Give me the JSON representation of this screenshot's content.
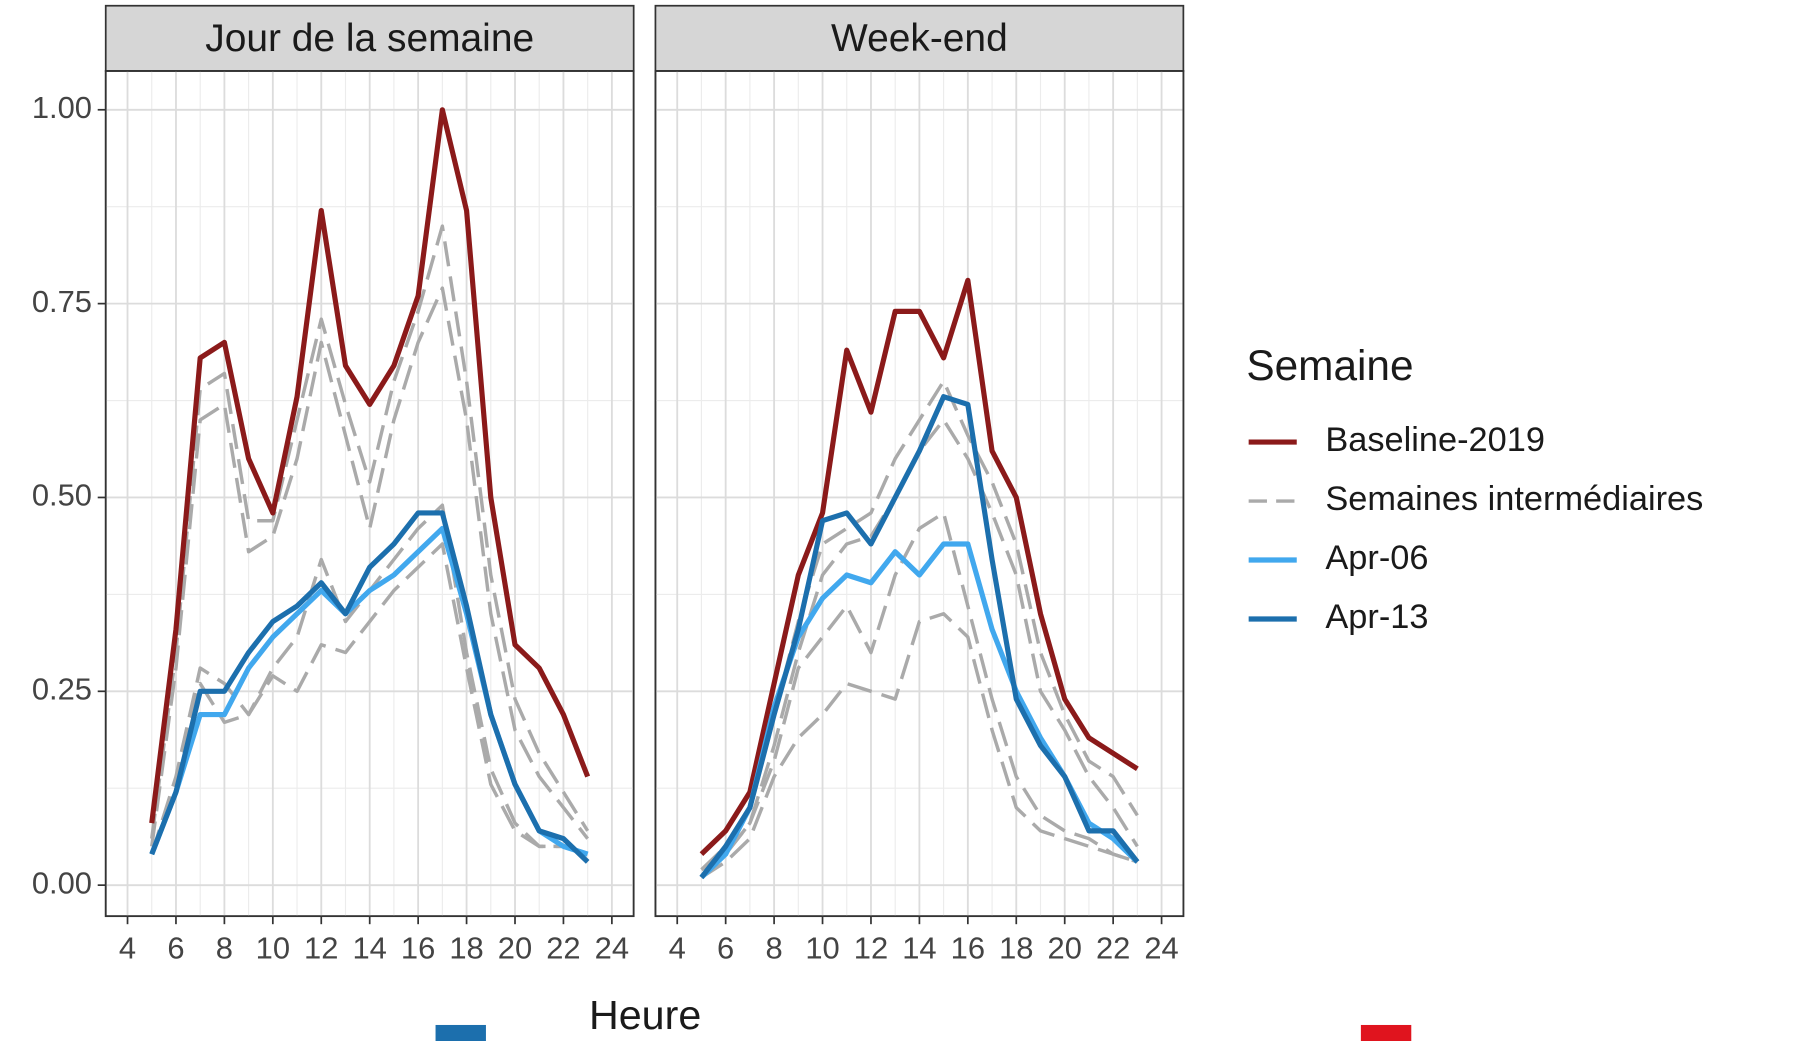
{
  "chart_data": [
    {
      "type": "line",
      "title": "Jour de la semaine",
      "x": [
        5,
        6,
        7,
        8,
        9,
        10,
        11,
        12,
        13,
        14,
        15,
        16,
        17,
        18,
        19,
        20,
        21,
        22,
        23
      ],
      "xlim": [
        3.1,
        24.9
      ],
      "xticks": [
        4,
        6,
        8,
        10,
        12,
        14,
        16,
        18,
        20,
        22,
        24
      ],
      "ylim": [
        -0.04,
        1.05
      ],
      "yticks": [
        {
          "value": 0,
          "label": "0.00"
        },
        {
          "value": 0.25,
          "label": "0.25"
        },
        {
          "value": 0.5,
          "label": "0.50"
        },
        {
          "value": 0.75,
          "label": "0.75"
        },
        {
          "value": 1,
          "label": "1.00"
        }
      ],
      "series": [
        {
          "entry": 1,
          "values": [
            0.06,
            0.3,
            0.64,
            0.66,
            0.47,
            0.47,
            0.6,
            0.73,
            0.62,
            0.52,
            0.65,
            0.74,
            0.85,
            0.65,
            0.4,
            0.24,
            0.17,
            0.12,
            0.07
          ]
        },
        {
          "entry": 1,
          "values": [
            0.05,
            0.28,
            0.6,
            0.62,
            0.43,
            0.45,
            0.55,
            0.7,
            0.58,
            0.46,
            0.6,
            0.7,
            0.77,
            0.6,
            0.35,
            0.2,
            0.14,
            0.1,
            0.06
          ]
        },
        {
          "entry": 1,
          "values": [
            0.04,
            0.14,
            0.28,
            0.26,
            0.22,
            0.28,
            0.32,
            0.42,
            0.34,
            0.38,
            0.42,
            0.46,
            0.49,
            0.3,
            0.15,
            0.08,
            0.05,
            0.05,
            0.04
          ]
        },
        {
          "entry": 1,
          "values": [
            0.04,
            0.13,
            0.26,
            0.21,
            0.22,
            0.27,
            0.25,
            0.31,
            0.3,
            0.34,
            0.38,
            0.41,
            0.44,
            0.28,
            0.13,
            0.07,
            0.05,
            0.05,
            0.04
          ]
        },
        {
          "entry": 0,
          "values": [
            0.08,
            0.33,
            0.68,
            0.7,
            0.55,
            0.48,
            0.63,
            0.87,
            0.67,
            0.62,
            0.67,
            0.76,
            1.0,
            0.87,
            0.5,
            0.31,
            0.28,
            0.22,
            0.14
          ]
        },
        {
          "entry": 2,
          "values": [
            0.04,
            0.12,
            0.22,
            0.22,
            0.28,
            0.32,
            0.35,
            0.38,
            0.35,
            0.38,
            0.4,
            0.43,
            0.46,
            0.35,
            0.22,
            0.13,
            0.07,
            0.05,
            0.04
          ]
        },
        {
          "entry": 3,
          "values": [
            0.04,
            0.12,
            0.25,
            0.25,
            0.3,
            0.34,
            0.36,
            0.39,
            0.35,
            0.41,
            0.44,
            0.48,
            0.48,
            0.36,
            0.22,
            0.13,
            0.07,
            0.06,
            0.03
          ]
        }
      ]
    },
    {
      "type": "line",
      "title": "Week-end",
      "x": [
        5,
        6,
        7,
        8,
        9,
        10,
        11,
        12,
        13,
        14,
        15,
        16,
        17,
        18,
        19,
        20,
        21,
        22,
        23
      ],
      "xlim": [
        3.1,
        24.9
      ],
      "xticks": [
        4,
        6,
        8,
        10,
        12,
        14,
        16,
        18,
        20,
        22,
        24
      ],
      "ylim": [
        -0.04,
        1.05
      ],
      "series": [
        {
          "entry": 1,
          "values": [
            0.02,
            0.05,
            0.1,
            0.22,
            0.34,
            0.44,
            0.46,
            0.48,
            0.55,
            0.6,
            0.65,
            0.58,
            0.52,
            0.44,
            0.3,
            0.22,
            0.16,
            0.14,
            0.09
          ]
        },
        {
          "entry": 1,
          "values": [
            0.02,
            0.04,
            0.08,
            0.18,
            0.3,
            0.4,
            0.44,
            0.45,
            0.5,
            0.56,
            0.6,
            0.55,
            0.48,
            0.4,
            0.25,
            0.2,
            0.14,
            0.1,
            0.05
          ]
        },
        {
          "entry": 1,
          "values": [
            0.01,
            0.04,
            0.08,
            0.16,
            0.28,
            0.32,
            0.36,
            0.3,
            0.4,
            0.46,
            0.48,
            0.36,
            0.24,
            0.14,
            0.09,
            0.07,
            0.06,
            0.04,
            0.03
          ]
        },
        {
          "entry": 1,
          "values": [
            0.01,
            0.03,
            0.06,
            0.14,
            0.19,
            0.22,
            0.26,
            0.25,
            0.24,
            0.34,
            0.35,
            0.32,
            0.2,
            0.1,
            0.07,
            0.06,
            0.05,
            0.04,
            0.03
          ]
        },
        {
          "entry": 0,
          "values": [
            0.04,
            0.07,
            0.12,
            0.26,
            0.4,
            0.48,
            0.69,
            0.61,
            0.74,
            0.74,
            0.68,
            0.78,
            0.56,
            0.5,
            0.35,
            0.24,
            0.19,
            0.17,
            0.15
          ]
        },
        {
          "entry": 2,
          "values": [
            0.01,
            0.04,
            0.1,
            0.23,
            0.32,
            0.37,
            0.4,
            0.39,
            0.43,
            0.4,
            0.44,
            0.44,
            0.33,
            0.25,
            0.19,
            0.14,
            0.08,
            0.06,
            0.03
          ]
        },
        {
          "entry": 3,
          "values": [
            0.01,
            0.05,
            0.1,
            0.22,
            0.33,
            0.47,
            0.48,
            0.44,
            0.5,
            0.56,
            0.63,
            0.62,
            0.42,
            0.24,
            0.18,
            0.14,
            0.07,
            0.07,
            0.03
          ]
        }
      ]
    }
  ],
  "xlabel": "Heure",
  "grid": true,
  "minor_grid": true,
  "legend": {
    "title": "Semaine",
    "position": "right",
    "entries": [
      {
        "name": "Baseline-2019",
        "color": "#8b1a1a",
        "dash": false
      },
      {
        "name": "Semaines intermédiaires",
        "color": "#aaaaaa",
        "dash": true
      },
      {
        "name": "Apr-06",
        "color": "#41a8ee",
        "dash": false
      },
      {
        "name": "Apr-13",
        "color": "#1c6fad",
        "dash": false
      }
    ]
  }
}
